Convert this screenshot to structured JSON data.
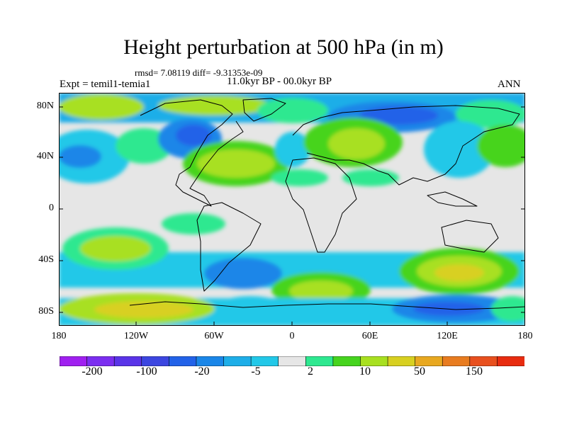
{
  "title": "Height perturbation at 500 hPa (in m)",
  "stats": "rmsd= 7.08119 diff= -9.31353e-09",
  "expt": "Expt = temil1-temia1",
  "period": "11.0kyr BP - 00.0kyr BP",
  "season": "ANN",
  "lat_ticks": [
    "80N",
    "40N",
    "0",
    "40S",
    "80S"
  ],
  "lon_ticks": [
    "180",
    "120W",
    "60W",
    "0",
    "60E",
    "120E",
    "180"
  ],
  "colorbar": {
    "colors": [
      "#a020f0",
      "#7b2ef0",
      "#5a34e8",
      "#3c46e0",
      "#2262e8",
      "#1a86e8",
      "#1eaee8",
      "#22c8e8",
      "#e6e6e6",
      "#2ee890",
      "#46d41e",
      "#a8e020",
      "#d8d020",
      "#e8a820",
      "#e87c20",
      "#e8501e",
      "#e82c10"
    ],
    "labels": [
      "-200",
      "-100",
      "-20",
      "-5",
      "2",
      "10",
      "50",
      "150"
    ]
  }
}
